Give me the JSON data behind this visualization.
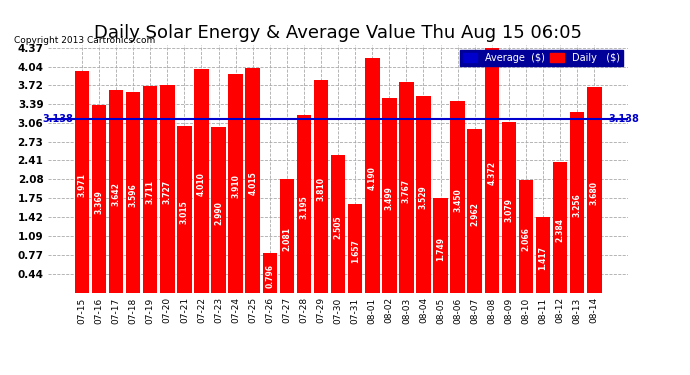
{
  "title": "Daily Solar Energy & Average Value Thu Aug 15 06:05",
  "copyright": "Copyright 2013 Cartronics.com",
  "categories": [
    "07-15",
    "07-16",
    "07-17",
    "07-18",
    "07-19",
    "07-20",
    "07-21",
    "07-22",
    "07-23",
    "07-24",
    "07-25",
    "07-26",
    "07-27",
    "07-28",
    "07-29",
    "07-30",
    "07-31",
    "08-01",
    "08-02",
    "08-03",
    "08-04",
    "08-05",
    "08-06",
    "08-07",
    "08-08",
    "08-09",
    "08-10",
    "08-11",
    "08-12",
    "08-13",
    "08-14"
  ],
  "values": [
    3.971,
    3.369,
    3.642,
    3.596,
    3.711,
    3.727,
    3.015,
    4.01,
    2.99,
    3.91,
    4.015,
    0.796,
    2.081,
    3.195,
    3.81,
    2.505,
    1.657,
    4.19,
    3.499,
    3.767,
    3.529,
    1.749,
    3.45,
    2.962,
    4.372,
    3.079,
    2.066,
    1.417,
    2.384,
    3.256,
    3.68
  ],
  "average": 3.138,
  "bar_color": "#ff0000",
  "avg_line_color": "#0000cc",
  "background_color": "#ffffff",
  "ylim_min": 0.11,
  "ylim_max": 4.42,
  "yticks": [
    0.44,
    0.77,
    1.09,
    1.42,
    1.75,
    2.08,
    2.41,
    2.73,
    3.06,
    3.39,
    3.72,
    4.04,
    4.37
  ],
  "title_fontsize": 13,
  "avg_label": "3.138",
  "legend_avg_color": "#0000cc",
  "legend_daily_color": "#ff0000",
  "legend_bg_color": "#000099"
}
